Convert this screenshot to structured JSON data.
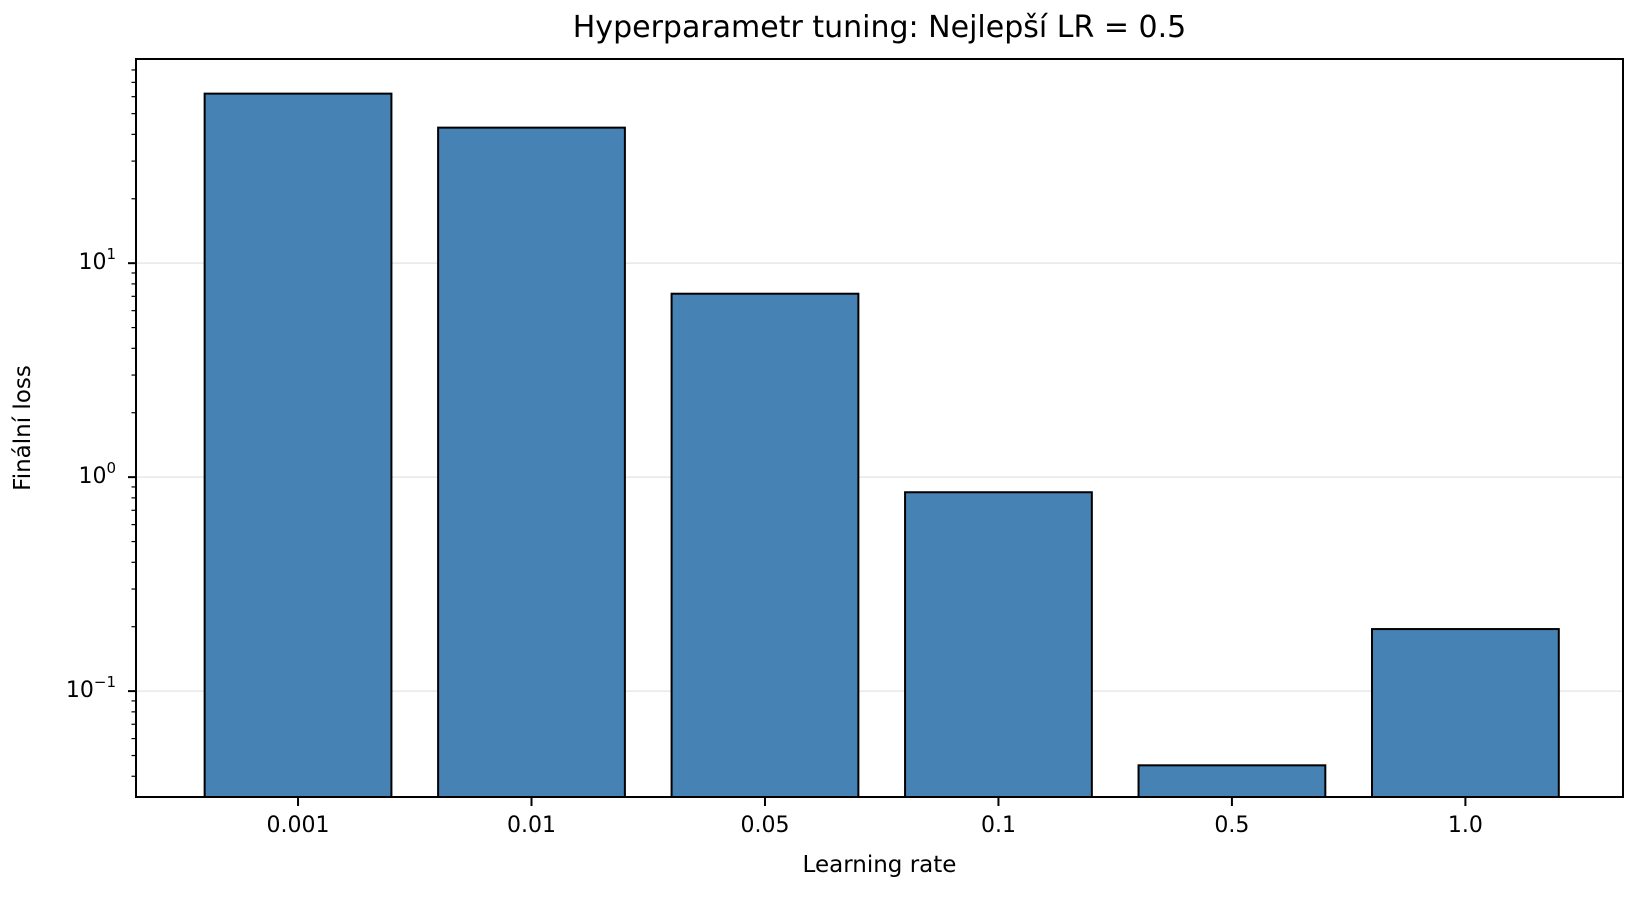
{
  "chart_data": {
    "type": "bar",
    "title": "Hyperparametr tuning: Nejlepší LR = 0.5",
    "xlabel": "Learning rate",
    "ylabel": "Finální loss",
    "categories": [
      "0.001",
      "0.01",
      "0.05",
      "0.1",
      "0.5",
      "1.0"
    ],
    "values": [
      62,
      43,
      7.2,
      0.85,
      0.045,
      0.195
    ],
    "yscale": "log",
    "ylim": [
      0.032,
      90
    ],
    "yticks": [
      {
        "value": 10,
        "label": "10^1",
        "base": "10",
        "exp": "1"
      },
      {
        "value": 1,
        "label": "10^0",
        "base": "10",
        "exp": "0"
      },
      {
        "value": 0.1,
        "label": "10^-1",
        "base": "10",
        "exp": "−1"
      }
    ],
    "grid": {
      "horizontal_major": true,
      "vertical": false
    },
    "colors": {
      "bar_fill": "#4682b4",
      "bar_edge": "#000000",
      "grid": "#e8e8e8",
      "spine": "#000000",
      "text": "#000000"
    }
  }
}
